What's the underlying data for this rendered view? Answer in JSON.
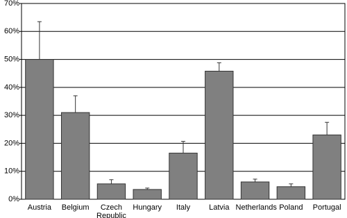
{
  "chart_data": {
    "type": "bar",
    "categories": [
      "Austria",
      "Belgium",
      "Czech Republic",
      "Hungary",
      "Italy",
      "Latvia",
      "Netherlands",
      "Poland",
      "Portugal"
    ],
    "values": [
      50,
      31,
      5.5,
      3.5,
      16.5,
      45.8,
      6.2,
      4.5,
      23
    ],
    "errors": [
      13.5,
      6,
      1.5,
      0.5,
      4.2,
      3,
      1,
      1,
      4.5
    ],
    "color": "#808080",
    "ylim": [
      0,
      70
    ],
    "yticks": [
      {
        "value": 0,
        "label": "0%"
      },
      {
        "value": 10,
        "label": "10%"
      },
      {
        "value": 20,
        "label": "20%"
      },
      {
        "value": 30,
        "label": "30%"
      },
      {
        "value": 40,
        "label": "40%"
      },
      {
        "value": 50,
        "label": "50%"
      },
      {
        "value": 60,
        "label": "60%"
      },
      {
        "value": 70,
        "label": "70%"
      }
    ],
    "grid": true
  }
}
